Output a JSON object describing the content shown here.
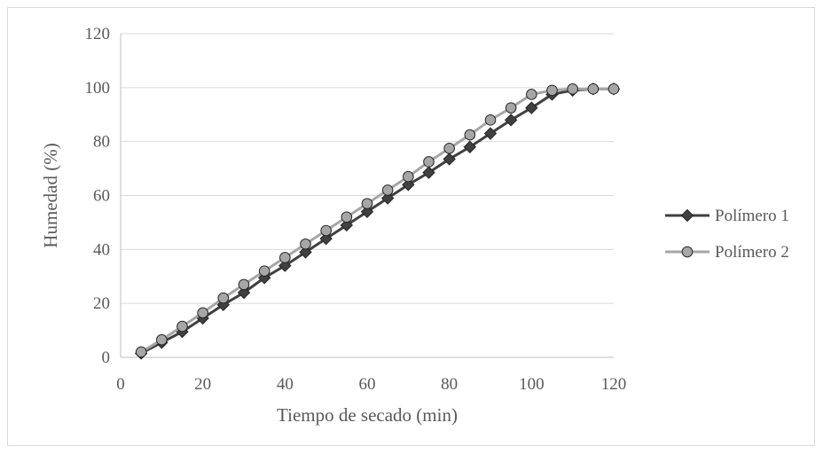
{
  "chart_data": {
    "type": "line",
    "xlabel": "Tiempo de secado (min)",
    "ylabel": "Humedad (%)",
    "xlim": [
      0,
      120
    ],
    "ylim": [
      0,
      120
    ],
    "x_ticks": [
      "0",
      "20",
      "40",
      "60",
      "80",
      "100",
      "120"
    ],
    "y_ticks": [
      "0",
      "20",
      "40",
      "60",
      "80",
      "100",
      "120"
    ],
    "grid": "horizontal",
    "legend_position": "right",
    "series": [
      {
        "name": "Polímero 1",
        "color": "#404040",
        "marker": "diamond",
        "x": [
          5,
          10,
          15,
          20,
          25,
          30,
          35,
          40,
          45,
          50,
          55,
          60,
          65,
          70,
          75,
          80,
          85,
          90,
          95,
          100,
          105,
          110,
          115,
          120
        ],
        "y": [
          1.5,
          5.5,
          9.5,
          14.5,
          19.5,
          24,
          29.5,
          34,
          39,
          44,
          49,
          54,
          59,
          64,
          68.5,
          73.5,
          78,
          83,
          88,
          92.5,
          97.5,
          99,
          99.5,
          99.5
        ]
      },
      {
        "name": "Polímero 2",
        "color": "#a6a6a6",
        "marker": "circle",
        "x": [
          5,
          10,
          15,
          20,
          25,
          30,
          35,
          40,
          45,
          50,
          55,
          60,
          65,
          70,
          75,
          80,
          85,
          90,
          95,
          100,
          105,
          110,
          115,
          120
        ],
        "y": [
          2,
          6.5,
          11.5,
          16.5,
          22,
          27,
          32,
          37,
          42,
          47,
          52,
          57,
          62,
          67,
          72.5,
          77.5,
          82.5,
          88,
          92.5,
          97.5,
          99,
          99.5,
          99.5,
          99.5
        ]
      }
    ]
  }
}
